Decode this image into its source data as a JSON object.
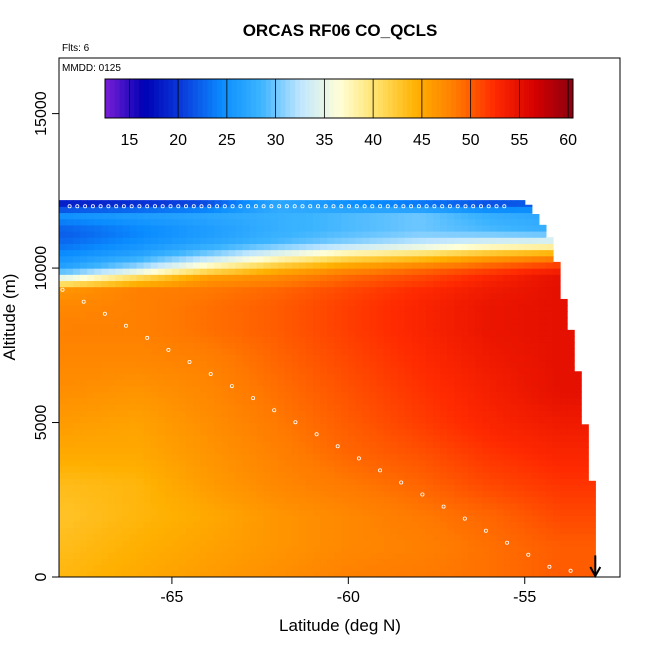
{
  "chart_data": {
    "type": "heatmap",
    "title": "ORCAS RF06 CO_QCLS",
    "note_flights": "Flts: 6",
    "note_date": "MMDD: 0125",
    "xlabel": "Latitude (deg N)",
    "ylabel": "Altitude (m)",
    "xlim": [
      -68.2,
      -52.3
    ],
    "ylim": [
      0,
      16800
    ],
    "x_ticks": [
      -65,
      -60,
      -55
    ],
    "x_tick_labels": [
      "-65",
      "-60",
      "-55"
    ],
    "y_ticks": [
      0,
      5000,
      10000,
      15000
    ],
    "y_tick_labels": [
      "0",
      "5000",
      "10000",
      "15000"
    ],
    "colorbar": {
      "min": 12.5,
      "max": 60.5,
      "ticks": [
        15,
        20,
        25,
        30,
        35,
        40,
        45,
        50,
        55,
        60
      ],
      "tick_labels": [
        "15",
        "20",
        "25",
        "30",
        "35",
        "40",
        "45",
        "50",
        "55",
        "60"
      ],
      "colors": [
        "#7a1fd6",
        "#0000b4",
        "#0a3ddc",
        "#0a8cff",
        "#3cb4ff",
        "#bfe6ff",
        "#ffffd8",
        "#ffe066",
        "#ffb000",
        "#ff7a00",
        "#ff2a00",
        "#d60000",
        "#8a0010"
      ]
    },
    "profile_envelope": {
      "latitude": [
        -68.2,
        -55.0,
        -54.6,
        -54.2,
        -53.9,
        -53.6,
        -53.35,
        -53.0,
        -53.0
      ],
      "max_altitude_m": [
        12200,
        12200,
        11600,
        10800,
        9000,
        7500,
        5400,
        2200,
        300
      ]
    },
    "field_altitude_m": [
      0,
      1000,
      2000,
      3000,
      4000,
      5000,
      6000,
      7000,
      8000,
      8800,
      9300,
      9700,
      10000,
      10400,
      10800,
      11200,
      11700,
      12200
    ],
    "field_latitude": [
      -68.0,
      -66.0,
      -64.0,
      -62.0,
      -60.0,
      -58.0,
      -56.0,
      -54.0
    ],
    "field_values_ppbv": [
      [
        44,
        45,
        46,
        47,
        48,
        48.5,
        49,
        50
      ],
      [
        43.5,
        44.5,
        45.5,
        46.5,
        47.5,
        48,
        49,
        50
      ],
      [
        43,
        44,
        45,
        46.5,
        47.5,
        48.5,
        49.5,
        51
      ],
      [
        43.5,
        44,
        46,
        47.5,
        48.5,
        49.5,
        51,
        52
      ],
      [
        45,
        45,
        46.5,
        48,
        49.5,
        50.5,
        52,
        53
      ],
      [
        46,
        45.5,
        47,
        48.5,
        50,
        51.5,
        53,
        54
      ],
      [
        47,
        46.5,
        47.5,
        49,
        50.5,
        52,
        53.5,
        55
      ],
      [
        47.5,
        47.5,
        48,
        49.5,
        51,
        52.5,
        54,
        55
      ],
      [
        48,
        48,
        49,
        50,
        51.5,
        53,
        54.5,
        55
      ],
      [
        47.5,
        48,
        49,
        50,
        51.5,
        53,
        54.5,
        55
      ],
      [
        46.5,
        48,
        48.5,
        49.5,
        51,
        52.5,
        54,
        55
      ],
      [
        35,
        41,
        46,
        47.5,
        49.5,
        51,
        53,
        55
      ],
      [
        27,
        32,
        39,
        44,
        47,
        49,
        51,
        53
      ],
      [
        25,
        27,
        31,
        36,
        40,
        42,
        45,
        47
      ],
      [
        23,
        25,
        27,
        29,
        31,
        33,
        35,
        36
      ],
      [
        22,
        24,
        26,
        28,
        29,
        30,
        29,
        28
      ],
      [
        25,
        26,
        27,
        28,
        29,
        30,
        28,
        27
      ],
      [
        17,
        18,
        20,
        27,
        24,
        22,
        20,
        21
      ]
    ],
    "arrow_latitude": -53.0,
    "arrow_top_altitude_m": 700
  }
}
